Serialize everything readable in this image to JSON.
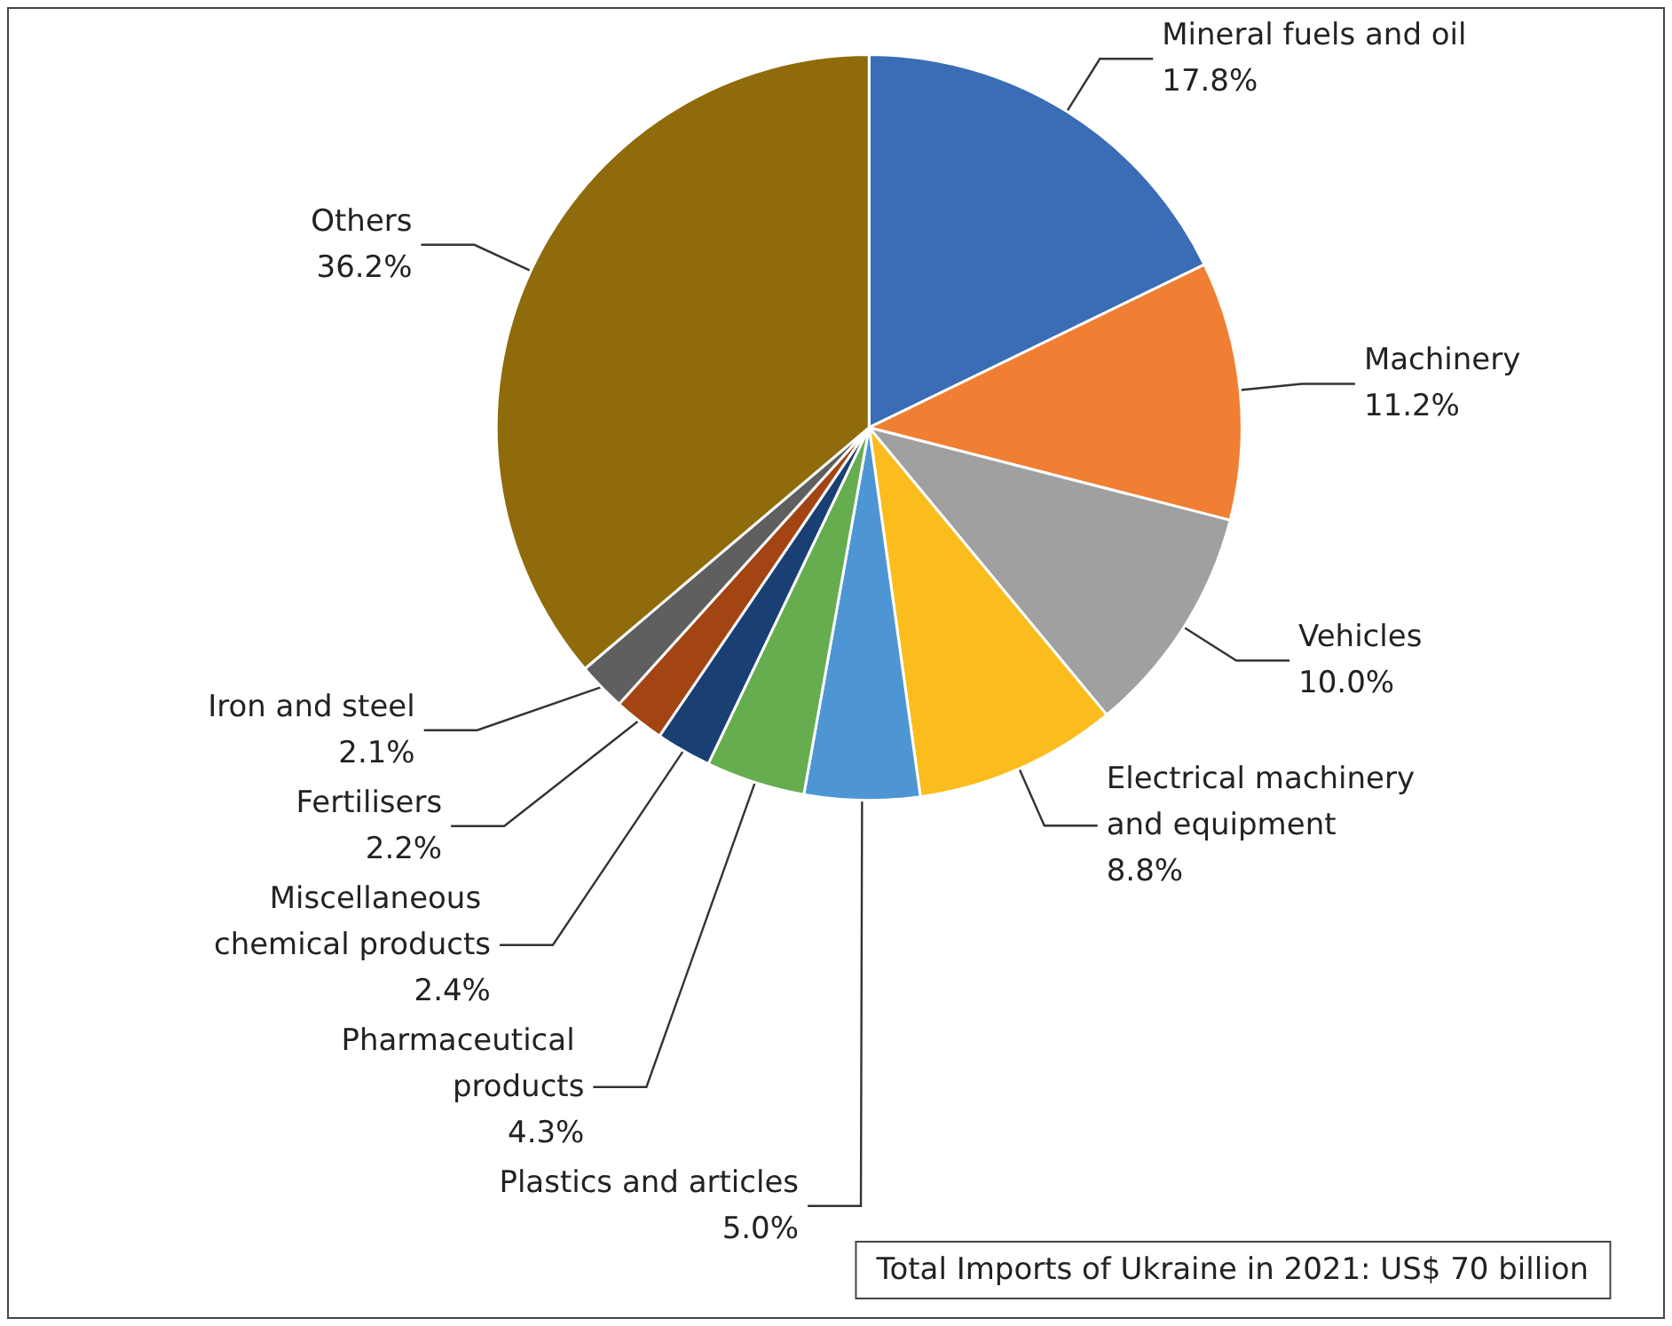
{
  "chart_data": {
    "type": "pie",
    "categories": [
      "Mineral fuels and oil",
      "Machinery",
      "Vehicles",
      "Electrical machinery and equipment",
      "Plastics and articles",
      "Pharmaceutical products",
      "Miscellaneous chemical products",
      "Fertilisers",
      "Iron and steel",
      "Others"
    ],
    "values": [
      17.8,
      11.2,
      10.0,
      8.8,
      5.0,
      4.3,
      2.4,
      2.2,
      2.1,
      36.2
    ],
    "value_labels": [
      "17.8%",
      "11.2%",
      "10.0%",
      "8.8%",
      "5.0%",
      "4.3%",
      "2.4%",
      "2.2%",
      "2.1%",
      "36.2%"
    ],
    "colors": [
      "#3a6db5",
      "#f07f33",
      "#a0a0a0",
      "#fbbd1e",
      "#4d96d3",
      "#66ad4f",
      "#1a3f73",
      "#a34513",
      "#5f5f5f",
      "#8f6b0b"
    ],
    "annotations": [
      "Total Imports of Ukraine in 2021: US$ 70 billion"
    ],
    "legend": false
  }
}
